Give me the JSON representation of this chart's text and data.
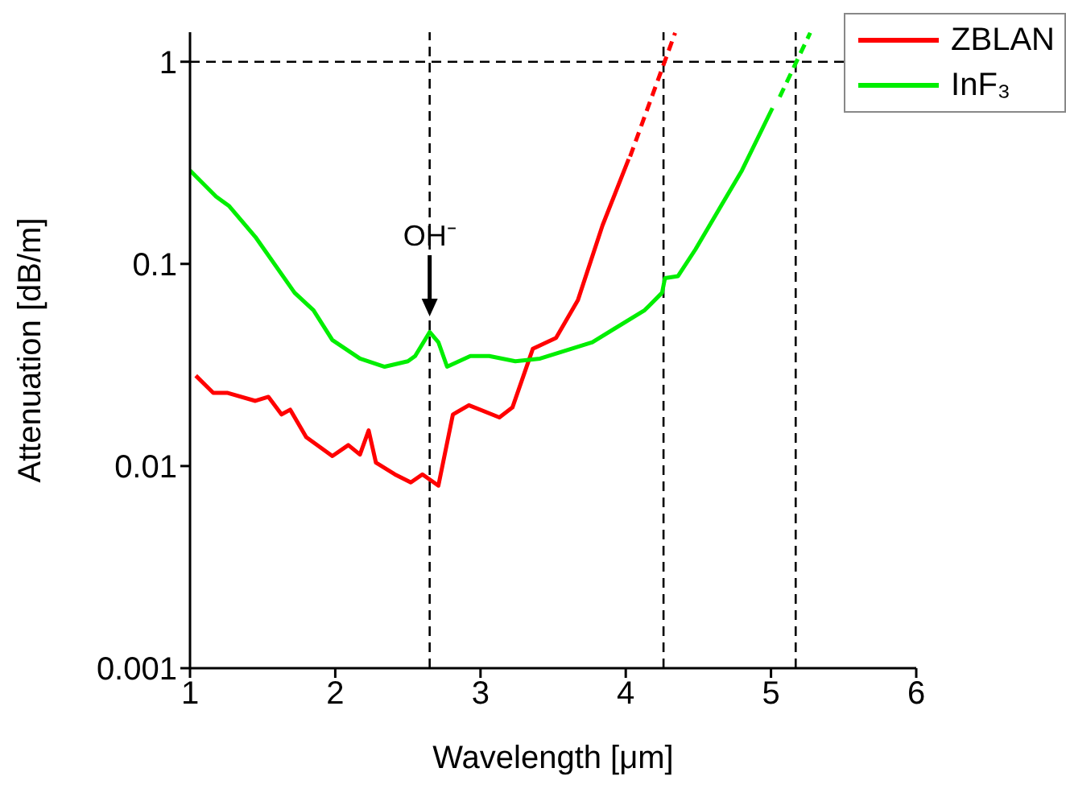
{
  "chart_data": {
    "type": "line",
    "xlabel": "Wavelength [μm]",
    "ylabel": "Attenuation [dB/m]",
    "log": "y",
    "xlim": [
      1,
      6
    ],
    "xticks": [
      1,
      2,
      3,
      4,
      5,
      6
    ],
    "ylim": [
      0.001,
      1.4
    ],
    "yticks": [
      0.001,
      0.01,
      0.1,
      1
    ],
    "legend": "top right",
    "series": [
      {
        "name": "ZBLAN",
        "color": "#ff0000",
        "x": [
          1.04,
          1.16,
          1.26,
          1.45,
          1.54,
          1.63,
          1.69,
          1.8,
          1.98,
          2.09,
          2.17,
          2.23,
          2.28,
          2.41,
          2.52,
          2.6,
          2.71,
          2.81,
          2.92,
          3.13,
          3.22,
          3.36,
          3.52,
          3.67,
          3.84,
          4.02
        ],
        "values": [
          0.028,
          0.023,
          0.023,
          0.021,
          0.022,
          0.018,
          0.019,
          0.0139,
          0.0112,
          0.0127,
          0.0114,
          0.015,
          0.0104,
          0.0091,
          0.0083,
          0.0091,
          0.008,
          0.018,
          0.02,
          0.0174,
          0.0195,
          0.038,
          0.043,
          0.066,
          0.155,
          0.33
        ]
      },
      {
        "name": "InF₃",
        "color": "#00ee00",
        "x": [
          1.0,
          1.18,
          1.27,
          1.45,
          1.72,
          1.85,
          1.98,
          2.17,
          2.34,
          2.5,
          2.55,
          2.65,
          2.71,
          2.77,
          2.93,
          3.06,
          3.24,
          3.41,
          3.77,
          4.13,
          4.16,
          4.25,
          4.27,
          4.36,
          4.48,
          4.63,
          4.8,
          5.01
        ],
        "values": [
          0.29,
          0.215,
          0.193,
          0.136,
          0.072,
          0.059,
          0.042,
          0.034,
          0.031,
          0.033,
          0.035,
          0.046,
          0.041,
          0.031,
          0.035,
          0.035,
          0.033,
          0.034,
          0.041,
          0.059,
          0.062,
          0.072,
          0.085,
          0.087,
          0.118,
          0.18,
          0.29,
          0.59
        ]
      },
      {
        "color": "#ff0000",
        "line_style": "dashed",
        "x": [
          4.03,
          4.34
        ],
        "values": [
          0.34,
          1.39
        ]
      },
      {
        "color": "#00ee00",
        "line_style": "dashed",
        "x": [
          5.06,
          5.27
        ],
        "values": [
          0.67,
          1.39
        ]
      }
    ],
    "ref_lines": [
      {
        "axis": "y",
        "value": 1,
        "color": "#000000",
        "line_style": "dashed"
      },
      {
        "axis": "x",
        "value": 2.65,
        "color": "#000000",
        "line_style": "dashed"
      },
      {
        "axis": "x",
        "value": 4.26,
        "color": "#000000",
        "line_style": "dashed"
      },
      {
        "axis": "x",
        "value": 5.17,
        "color": "#000000",
        "line_style": "dashed"
      }
    ],
    "annotations": [
      {
        "text": "OH⁻",
        "x": 2.65,
        "y": 0.055
      }
    ]
  }
}
